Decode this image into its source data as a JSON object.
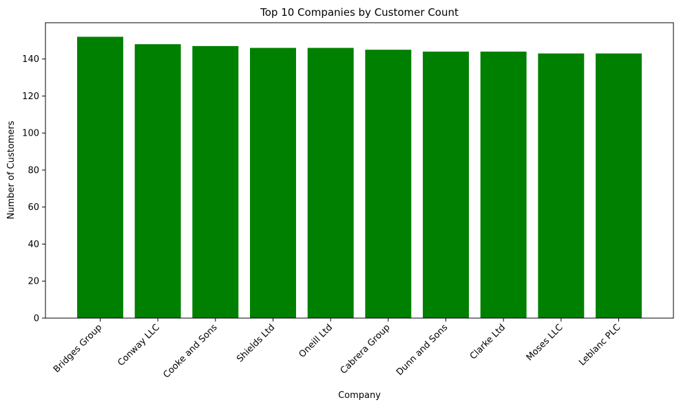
{
  "chart_data": {
    "type": "bar",
    "title": "Top 10 Companies by Customer Count",
    "xlabel": "Company",
    "ylabel": "Number of Customers",
    "categories": [
      "Bridges Group",
      "Conway LLC",
      "Cooke and Sons",
      "Shields Ltd",
      "Oneill Ltd",
      "Cabrera Group",
      "Dunn and Sons",
      "Clarke Ltd",
      "Moses LLC",
      "Leblanc PLC"
    ],
    "values": [
      152,
      148,
      147,
      146,
      146,
      145,
      144,
      144,
      143,
      143
    ],
    "ylim": [
      0,
      159.6
    ],
    "yticks": [
      "0",
      "20",
      "40",
      "60",
      "80",
      "100",
      "120",
      "140"
    ],
    "bar_color": "#008000",
    "grid": false,
    "legend": "none"
  }
}
